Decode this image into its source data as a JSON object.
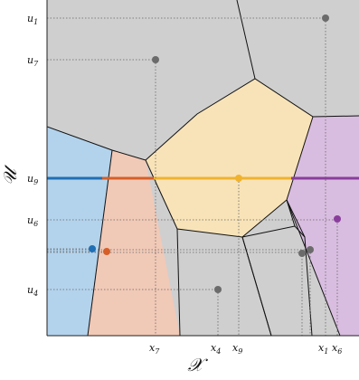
{
  "axes": {
    "x_name": "𝒳",
    "y_name": "𝒰",
    "x_ticks": [
      {
        "base": "x",
        "sub": "7"
      },
      {
        "base": "x",
        "sub": "4"
      },
      {
        "base": "x",
        "sub": "9"
      },
      {
        "base": "x",
        "sub": "1"
      },
      {
        "base": "x",
        "sub": "6"
      }
    ],
    "y_ticks": [
      {
        "base": "u",
        "sub": "1"
      },
      {
        "base": "u",
        "sub": "7"
      },
      {
        "base": "u",
        "sub": "9"
      },
      {
        "base": "u",
        "sub": "6"
      },
      {
        "base": "u",
        "sub": "4"
      }
    ]
  },
  "colors": {
    "cell_gray": "#cfcfcf",
    "blue_cell": "#b3d3ec",
    "orange_cell": "#f1c9b7",
    "yellow_cell": "#f8e3b8",
    "purple_cell": "#d9bde0",
    "blue": "#1f6fb5",
    "orange": "#d65f27",
    "yellow": "#f0b32f",
    "purple": "#8a3e9c",
    "point_gray": "#6b6b6b",
    "edge": "#111111"
  },
  "points": [
    {
      "id": "u1",
      "color": "point_gray"
    },
    {
      "id": "u7",
      "color": "point_gray"
    },
    {
      "id": "u9",
      "color": "yellow"
    },
    {
      "id": "u6",
      "color": "purple"
    },
    {
      "id": "u4",
      "color": "point_gray"
    },
    {
      "id": "blue",
      "color": "blue"
    },
    {
      "id": "orange",
      "color": "orange"
    },
    {
      "id": "g1",
      "color": "point_gray"
    },
    {
      "id": "g2",
      "color": "point_gray"
    }
  ]
}
